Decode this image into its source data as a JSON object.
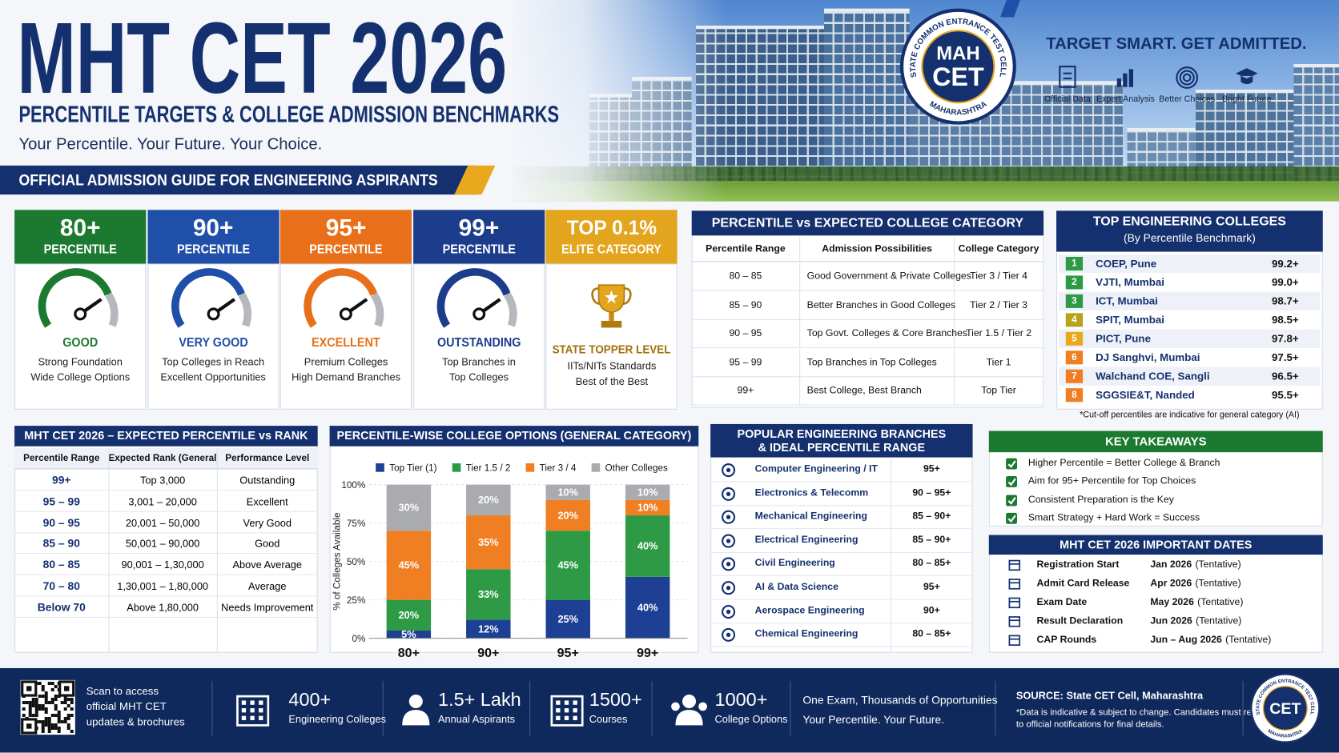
{
  "header": {
    "title": "MHT CET 2026",
    "subtitle": "PERCENTILE TARGETS & COLLEGE ADMISSION BENCHMARKS",
    "tagline": "Your Percentile. Your Future. Your Choice.",
    "banner": "OFFICIAL ADMISSION GUIDE FOR ENGINEERING ASPIRANTS"
  },
  "logo": {
    "ring_top": "STATE COMMON ENTRANCE TEST CELL",
    "line1": "MAH",
    "line2": "CET",
    "ring_bottom": "MAHARASHTRA"
  },
  "promo": {
    "slogan": "TARGET SMART. GET ADMITTED.",
    "features": [
      "Official Data",
      "Expert Analysis",
      "Better Choices",
      "Bright Future"
    ]
  },
  "tiers": [
    {
      "value": "80+",
      "label": "PERCENTILE",
      "rating": "GOOD",
      "lines": [
        "Strong Foundation",
        "Wide College Options"
      ],
      "color": "#1b7a30"
    },
    {
      "value": "90+",
      "label": "PERCENTILE",
      "rating": "VERY GOOD",
      "lines": [
        "Top Colleges in Reach",
        "Excellent Opportunities"
      ],
      "color": "#1f4fa8"
    },
    {
      "value": "95+",
      "label": "PERCENTILE",
      "rating": "EXCELLENT",
      "lines": [
        "Premium Colleges",
        "High Demand Branches"
      ],
      "color": "#e8701a"
    },
    {
      "value": "99+",
      "label": "PERCENTILE",
      "rating": "OUTSTANDING",
      "lines": [
        "Top Branches in",
        "Top Colleges"
      ],
      "color": "#1c3d8c"
    },
    {
      "value": "TOP 0.1%",
      "label": "ELITE CATEGORY",
      "rating": "STATE TOPPER LEVEL",
      "lines": [
        "IITs/NITs Standards",
        "Best of the Best"
      ],
      "color": "#e3a41e"
    }
  ],
  "category_table": {
    "title": "PERCENTILE vs EXPECTED COLLEGE CATEGORY",
    "columns": [
      "Percentile Range",
      "Admission Possibilities",
      "College Category"
    ],
    "rows": [
      [
        "80 – 85",
        "Good Government & Private Colleges",
        "Tier 3 / Tier 4"
      ],
      [
        "85 – 90",
        "Better Branches in Good Colleges",
        "Tier 2 / Tier 3"
      ],
      [
        "90 – 95",
        "Top Govt. Colleges & Core Branches",
        "Tier 1.5 / Tier 2"
      ],
      [
        "95 – 99",
        "Top Branches in Top Colleges",
        "Tier 1"
      ],
      [
        "99+",
        "Best College, Best Branch",
        "Top Tier"
      ]
    ]
  },
  "top_colleges": {
    "title": "TOP ENGINEERING COLLEGES",
    "subtitle": "(By Percentile Benchmark)",
    "rows": [
      {
        "rank": "1",
        "name": "COEP, Pune",
        "cutoff": "99.2+"
      },
      {
        "rank": "2",
        "name": "VJTI, Mumbai",
        "cutoff": "99.0+"
      },
      {
        "rank": "3",
        "name": "ICT, Mumbai",
        "cutoff": "98.7+"
      },
      {
        "rank": "4",
        "name": "SPIT, Mumbai",
        "cutoff": "98.5+"
      },
      {
        "rank": "5",
        "name": "PICT, Pune",
        "cutoff": "97.8+"
      },
      {
        "rank": "6",
        "name": "DJ Sanghvi, Mumbai",
        "cutoff": "97.5+"
      },
      {
        "rank": "7",
        "name": "Walchand COE, Sangli",
        "cutoff": "96.5+"
      },
      {
        "rank": "8",
        "name": "SGGSIE&T, Nanded",
        "cutoff": "95.5+"
      }
    ],
    "note": "*Cut-off percentiles are indicative for general category (AI)"
  },
  "rank_table": {
    "title": "MHT CET 2026 – EXPECTED PERCENTILE vs RANK",
    "columns": [
      "Percentile Range",
      "Expected Rank (General)",
      "Performance Level"
    ],
    "rows": [
      [
        "99+",
        "Top 3,000",
        "Outstanding"
      ],
      [
        "95 – 99",
        "3,001 – 20,000",
        "Excellent"
      ],
      [
        "90 – 95",
        "20,001 – 50,000",
        "Very Good"
      ],
      [
        "85 – 90",
        "50,001 – 90,000",
        "Good"
      ],
      [
        "80 – 85",
        "90,001 – 1,30,000",
        "Above Average"
      ],
      [
        "70 – 80",
        "1,30,001 – 1,80,000",
        "Average"
      ],
      [
        "Below 70",
        "Above 1,80,000",
        "Needs Improvement"
      ]
    ]
  },
  "chart_data": {
    "type": "bar",
    "stacked": true,
    "title": "PERCENTILE-WISE COLLEGE OPTIONS (GENERAL CATEGORY)",
    "ylabel": "% of Colleges Available",
    "categories": [
      "80+",
      "90+",
      "95+",
      "99+"
    ],
    "series": [
      {
        "name": "Top Tier (1)",
        "color": "#1d3f94",
        "values": [
          5,
          12,
          25,
          40
        ],
        "value_labels": [
          "5%",
          "12%",
          "25%",
          "40%"
        ]
      },
      {
        "name": "Tier 1.5 / 2",
        "color": "#2e9a45",
        "values": [
          20,
          33,
          45,
          40
        ],
        "value_labels": [
          "20%",
          "33%",
          "45%",
          "40%"
        ]
      },
      {
        "name": "Tier 3 / 4",
        "color": "#f07e22",
        "values": [
          45,
          35,
          20,
          10
        ],
        "value_labels": [
          "45%",
          "35%",
          "20%",
          "10%"
        ]
      },
      {
        "name": "Other Colleges",
        "color": "#a9abae",
        "values": [
          30,
          20,
          10,
          10
        ],
        "value_labels": [
          "30%",
          "20%",
          "10%",
          "10%"
        ]
      }
    ],
    "ylim": [
      0,
      100
    ],
    "yticks": [
      {
        "value": 0,
        "label": "0%"
      },
      {
        "value": 25,
        "label": "25%"
      },
      {
        "value": 50,
        "label": "50%"
      },
      {
        "value": 75,
        "label": "75%"
      },
      {
        "value": 100,
        "label": "100%"
      }
    ],
    "grid": true,
    "legend": "top"
  },
  "branches": {
    "title": [
      "POPULAR ENGINEERING BRANCHES",
      "& IDEAL PERCENTILE RANGE"
    ],
    "rows": [
      {
        "name": "Computer Engineering / IT",
        "range": "95+"
      },
      {
        "name": "Electronics & Telecomm",
        "range": "90 – 95+"
      },
      {
        "name": "Mechanical Engineering",
        "range": "85 – 90+"
      },
      {
        "name": "Electrical Engineering",
        "range": "85 – 90+"
      },
      {
        "name": "Civil Engineering",
        "range": "80 – 85+"
      },
      {
        "name": "AI & Data Science",
        "range": "95+"
      },
      {
        "name": "Aerospace Engineering",
        "range": "90+"
      },
      {
        "name": "Chemical Engineering",
        "range": "80 – 85+"
      }
    ]
  },
  "takeaways": {
    "title": "KEY TAKEAWAYS",
    "items": [
      "Higher Percentile = Better College & Branch",
      "Aim for 95+ Percentile for Top Choices",
      "Consistent Preparation is the Key",
      "Smart Strategy + Hard Work = Success"
    ]
  },
  "dates": {
    "title": "MHT CET 2026 IMPORTANT DATES",
    "rows": [
      {
        "event": "Registration Start",
        "date": "Jan 2026",
        "note": "(Tentative)"
      },
      {
        "event": "Admit Card Release",
        "date": "Apr 2026",
        "note": "(Tentative)"
      },
      {
        "event": "Exam Date",
        "date": "May 2026",
        "note": "(Tentative)"
      },
      {
        "event": "Result Declaration",
        "date": "Jun 2026",
        "note": "(Tentative)"
      },
      {
        "event": "CAP Rounds",
        "date": "Jun – Aug 2026",
        "note": "(Tentative)"
      }
    ]
  },
  "footer": {
    "qr_text": [
      "Scan to access",
      "official MHT CET",
      "updates & brochures"
    ],
    "stats": [
      {
        "value": "400+",
        "label": "Engineering Colleges"
      },
      {
        "value": "1.5+ Lakh",
        "label": "Annual Aspirants"
      },
      {
        "value": "1500+",
        "label": "Courses"
      },
      {
        "value": "1000+",
        "label": "College Options"
      }
    ],
    "message": [
      "One Exam, Thousands of Opportunities",
      "Your Percentile. Your Future."
    ],
    "source": "SOURCE: State CET Cell, Maharashtra",
    "disclaimer": [
      "*Data is indicative & subject to change. Candidates must refer",
      "to official notifications for final details."
    ],
    "logo": {
      "ring_top": "STATE COMMON ENTRANCE TEST CELL",
      "center": "CET",
      "ring_bottom": "MAHARASHTRA"
    }
  }
}
